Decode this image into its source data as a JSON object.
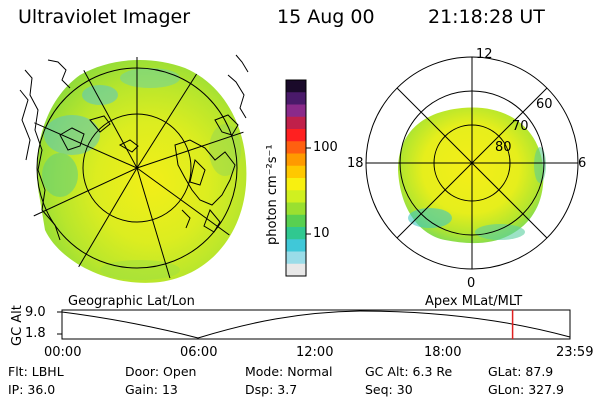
{
  "header": {
    "title": "Ultraviolet Imager",
    "date": "15 Aug 00",
    "time": "21:18:28 UT"
  },
  "colorbar": {
    "unit_label": "photon cm⁻²s⁻¹",
    "ticks": [
      "100",
      "10"
    ],
    "colors": [
      "#1a0a2a",
      "#4a1a6a",
      "#8a2a8a",
      "#c0204a",
      "#ff2020",
      "#ff6010",
      "#ff9a00",
      "#ffc800",
      "#f8f010",
      "#d0f020",
      "#9ae030",
      "#58d050",
      "#30c890",
      "#40c8d8",
      "#9adce8",
      "#e8e8e8"
    ]
  },
  "polar_plot": {
    "mlt_labels": [
      "12",
      "18",
      "6",
      "0"
    ],
    "lat_labels": [
      "60",
      "70",
      "80"
    ]
  },
  "timeline": {
    "left_label": "Geographic Lat/Lon",
    "right_label": "Apex MLat/MLT",
    "axis_title": "GC Alt",
    "y_ticks": [
      "9.0",
      "1.8"
    ],
    "x_ticks": [
      "00:00",
      "06:00",
      "12:00",
      "18:00",
      "23:59"
    ],
    "current_time_fraction": 0.887,
    "marker_color": "#e02020"
  },
  "footer": {
    "row1": [
      {
        "label": "Flt:",
        "value": "LBHL"
      },
      {
        "label": "Door:",
        "value": "Open"
      },
      {
        "label": "Mode:",
        "value": "Normal"
      },
      {
        "label": "GC Alt:",
        "value": "6.3 Re"
      },
      {
        "label": "GLat:",
        "value": "87.9"
      }
    ],
    "row2": [
      {
        "label": "IP:",
        "value": "36.0"
      },
      {
        "label": "Gain:",
        "value": "13"
      },
      {
        "label": "Dsp:",
        "value": "3.7"
      },
      {
        "label": "Seq:",
        "value": "30"
      },
      {
        "label": "GLon:",
        "value": "327.9"
      }
    ]
  }
}
